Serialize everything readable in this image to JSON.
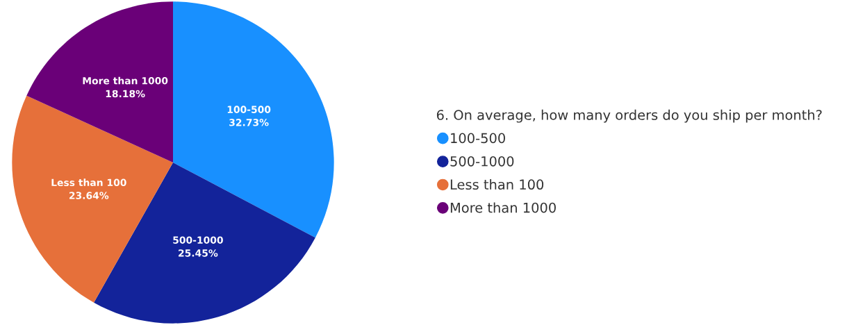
{
  "chart_data": {
    "type": "pie",
    "legend_title": "6. On average, how many orders do you ship per month?",
    "categories": [
      "100-500",
      "500-1000",
      "Less than 100",
      "More than 1000"
    ],
    "values": [
      32.73,
      25.45,
      23.64,
      18.18
    ],
    "colors": [
      "#1890ff",
      "#13239a",
      "#e6703a",
      "#6a0078"
    ],
    "value_labels": [
      "32.73%",
      "25.45%",
      "23.64%",
      "18.18%"
    ],
    "legend": "right"
  }
}
